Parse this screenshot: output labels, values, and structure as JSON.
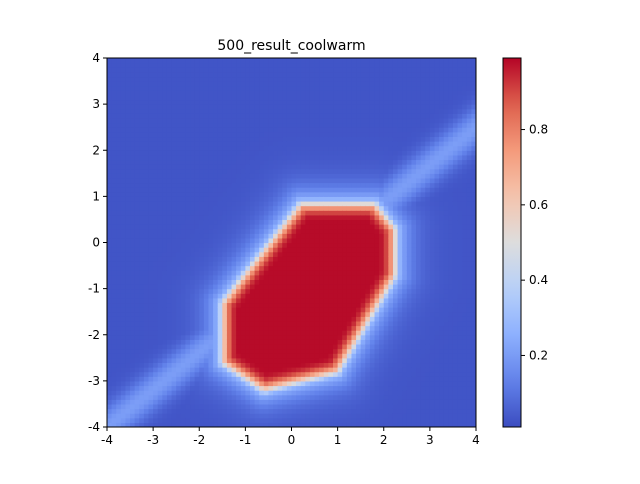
{
  "chart_data": {
    "type": "heatmap",
    "title": "500_result_coolwarm",
    "xlabel": "",
    "ylabel": "",
    "xlim": [
      -4,
      4
    ],
    "ylim": [
      -4,
      4
    ],
    "x_ticks": [
      -4,
      -3,
      -2,
      -1,
      0,
      1,
      2,
      3,
      4
    ],
    "y_ticks": [
      -4,
      -3,
      -2,
      -1,
      0,
      1,
      2,
      3,
      4
    ],
    "x_tick_labels": [
      "-4",
      "-3",
      "-2",
      "-1",
      "0",
      "1",
      "2",
      "3",
      "4"
    ],
    "y_tick_labels": [
      "-4",
      "-3",
      "-2",
      "-1",
      "0",
      "1",
      "2",
      "3",
      "4"
    ],
    "colormap": "coolwarm",
    "colorbar": {
      "range": [
        0.01,
        0.99
      ],
      "ticks": [
        0.2,
        0.4,
        0.6,
        0.8
      ],
      "tick_labels": [
        "0.2",
        "0.4",
        "0.6",
        "0.8"
      ],
      "placement": "right"
    },
    "grid": false,
    "description_of_field": {
      "high_region": {
        "shape": "convex polygon",
        "vertices": [
          [
            -1.5,
            -2.6
          ],
          [
            -1.5,
            -1.3
          ],
          [
            0.2,
            0.85
          ],
          [
            1.8,
            0.85
          ],
          [
            2.25,
            0.3
          ],
          [
            2.25,
            -0.7
          ],
          [
            1.0,
            -2.8
          ],
          [
            -0.6,
            -3.2
          ]
        ],
        "peak_value": 0.99
      },
      "diagonal_ridge": {
        "from": [
          -4,
          -4
        ],
        "to": [
          4,
          2.5
        ],
        "value": 0.18
      },
      "background_value": 0.02
    }
  }
}
